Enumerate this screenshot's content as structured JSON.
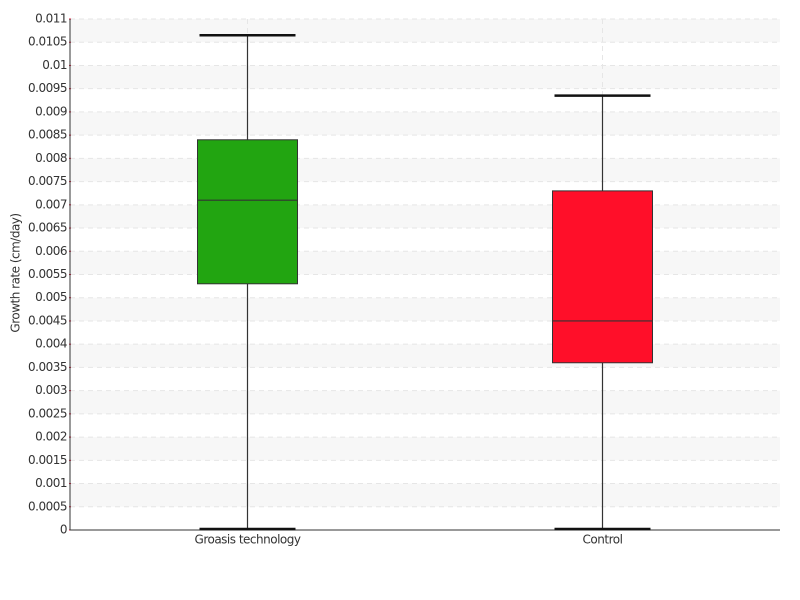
{
  "chart_data": {
    "type": "box",
    "y_label": "Growth rate (cm/day)",
    "categories": [
      "Groasis technology",
      "Control"
    ],
    "colors": [
      "#22a511",
      "#ff0f29"
    ],
    "min": [
      0,
      0
    ],
    "q1": [
      0.0053,
      0.0036
    ],
    "median": [
      0.0071,
      0.0045
    ],
    "q3": [
      0.0084,
      0.0073
    ],
    "max": [
      0.01065,
      0.00935
    ],
    "ylim": [
      0,
      0.011
    ],
    "yticks": [
      0,
      0.0005,
      0.001,
      0.0015,
      0.002,
      0.0025,
      0.003,
      0.0035,
      0.004,
      0.0045,
      0.005,
      0.0055,
      0.006,
      0.0065,
      0.007,
      0.0075,
      0.008,
      0.0085,
      0.009,
      0.0095,
      0.01,
      0.0105,
      0.011
    ],
    "grid": true
  }
}
